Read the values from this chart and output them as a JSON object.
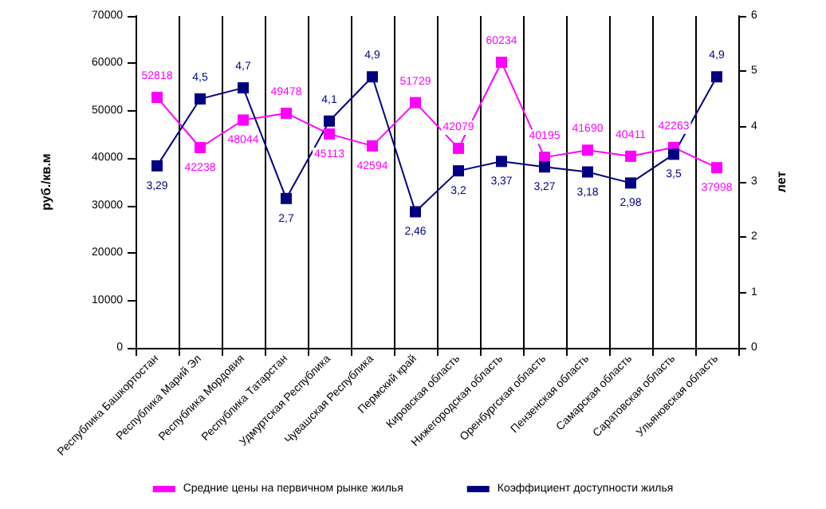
{
  "chart_data": {
    "type": "line",
    "ylabel": "руб./кв.м",
    "y2label": "лет",
    "categories": [
      "Республика Башкортостан",
      "Республика Марий Эл",
      "Республика Мордовия",
      "Республика Татарстан",
      "Удмуртская Республика",
      "Чувашская Республика",
      "Пермский край",
      "Кировская область",
      "Нижегородская область",
      "Оренбургская область",
      "Пензенская область",
      "Самарская область",
      "Саратовская область",
      "Ульяновская область"
    ],
    "series": [
      {
        "name": "Средние цены на первичном рынке жилья",
        "color": "#ff00ff",
        "values": [
          52818,
          42238,
          48044,
          49478,
          45113,
          42594,
          51729,
          42079,
          60234,
          40195,
          41690,
          40411,
          42263,
          37998
        ],
        "value_labels": [
          "52818",
          "42238",
          "48044",
          "49478",
          "45113",
          "42594",
          "51729",
          "42079",
          "60234",
          "40195",
          "41690",
          "40411",
          "42263",
          "37998"
        ]
      },
      {
        "name": "Коэффициент доступности жилья",
        "color": "#000080",
        "axis": "y2",
        "values": [
          3.29,
          4.5,
          4.7,
          2.7,
          4.1,
          4.9,
          2.46,
          3.2,
          3.37,
          3.27,
          3.18,
          2.98,
          3.5,
          4.9
        ],
        "value_labels": [
          "3,29",
          "4,5",
          "4,7",
          "2,7",
          "4,1",
          "4,9",
          "2,46",
          "3,2",
          "3,37",
          "3,27",
          "3,18",
          "2,98",
          "3,5",
          "4,9"
        ]
      }
    ],
    "ylim": [
      0,
      70000
    ],
    "yticks": [
      0,
      10000,
      20000,
      30000,
      40000,
      50000,
      60000,
      70000
    ],
    "y2lim": [
      0,
      6
    ],
    "y2ticks": [
      0,
      1,
      2,
      3,
      4,
      5,
      6
    ],
    "grid": "x",
    "legend": "bottom",
    "marker": "square",
    "line_style": "solid"
  }
}
